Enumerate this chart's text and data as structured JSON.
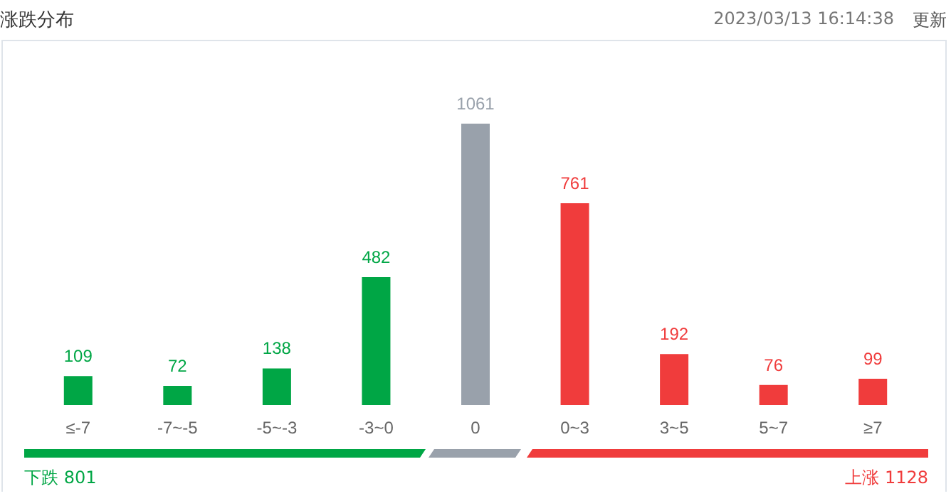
{
  "chart_data": {
    "type": "bar",
    "title": "涨跌分布",
    "categories": [
      "≤-7",
      "-7~-5",
      "-5~-3",
      "-3~0",
      "0",
      "0~3",
      "3~5",
      "5~7",
      "≥7"
    ],
    "values": [
      109,
      72,
      138,
      482,
      1061,
      761,
      192,
      76,
      99
    ],
    "colors": [
      "#00a645",
      "#00a645",
      "#00a645",
      "#00a645",
      "#99a1ab",
      "#f03c3c",
      "#f03c3c",
      "#f03c3c",
      "#f03c3c"
    ],
    "data_labels": true,
    "annotations": [
      "2023/03/13 16:14:38",
      "更新",
      "下跌 801",
      "上涨 1128"
    ]
  }
}
